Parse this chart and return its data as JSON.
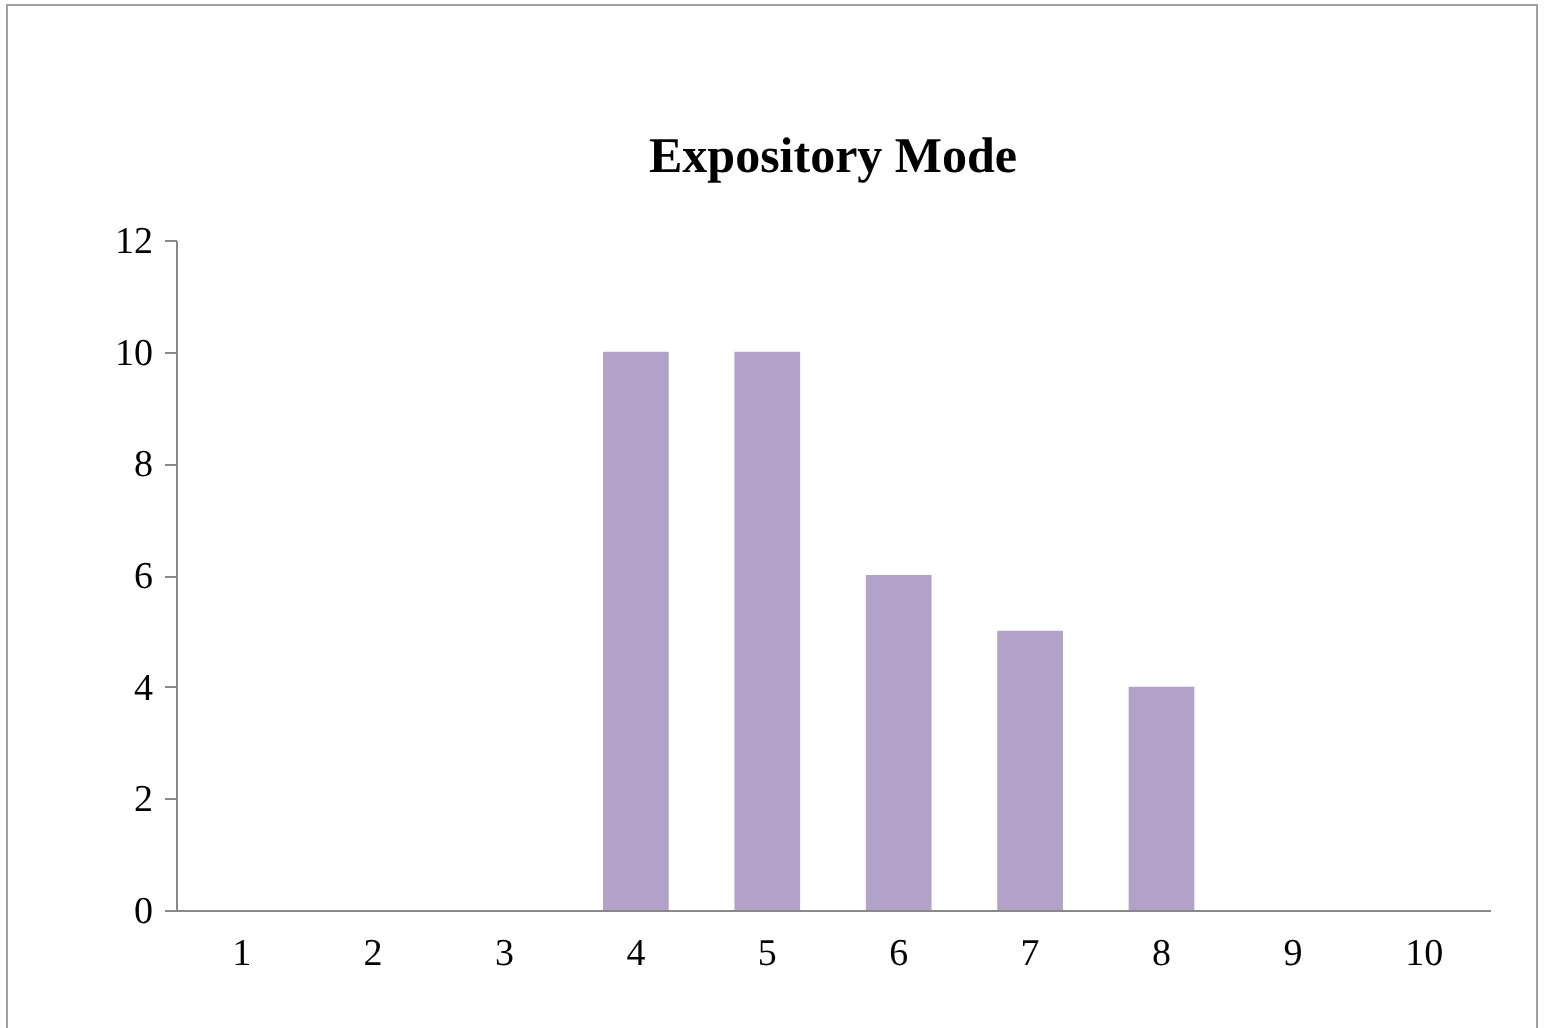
{
  "chart_data": {
    "type": "bar",
    "title": "Expository Mode",
    "categories": [
      "1",
      "2",
      "3",
      "4",
      "5",
      "6",
      "7",
      "8",
      "9",
      "10"
    ],
    "values": [
      0,
      0,
      0,
      10,
      10,
      6,
      5,
      4,
      0,
      0
    ],
    "color": "#b3a2c7",
    "ylim": [
      0,
      12
    ],
    "yticks": [
      0,
      2,
      4,
      6,
      8,
      10,
      12
    ],
    "grid": false
  }
}
